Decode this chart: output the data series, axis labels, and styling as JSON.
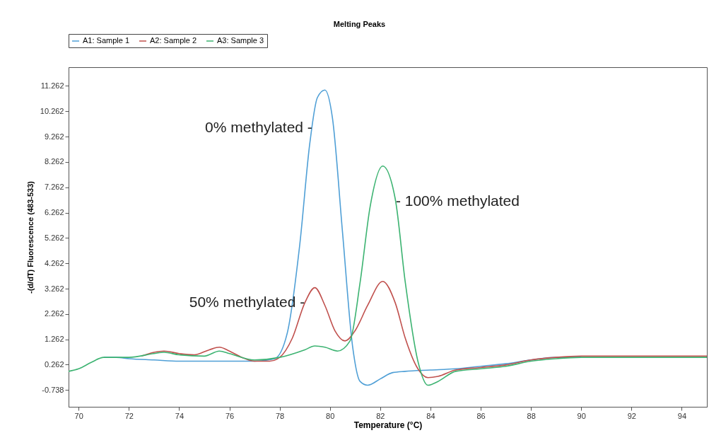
{
  "chart_data": {
    "type": "line",
    "title": "Melting Peaks",
    "xlabel": "Temperature (°C)",
    "ylabel": "-(d/dT) Fluorescence (483-533)",
    "xlim": [
      69.6,
      95.0
    ],
    "ylim": [
      -1.4,
      12.0
    ],
    "xticks": [
      70,
      72,
      74,
      76,
      78,
      80,
      82,
      84,
      86,
      88,
      90,
      92,
      94
    ],
    "yticks": [
      -0.738,
      0.262,
      1.262,
      2.262,
      3.262,
      4.262,
      5.262,
      6.262,
      7.262,
      8.262,
      9.262,
      10.262,
      11.262
    ],
    "grid": false,
    "legend": "top",
    "marker": "none",
    "line_style": "solid",
    "series": [
      {
        "name": "A1: Sample 1",
        "color": "#4f9fd6",
        "x": [
          71.0,
          71.5,
          72,
          73,
          74,
          75,
          76,
          77,
          77.8,
          78.3,
          78.8,
          79.2,
          79.5,
          79.8,
          80.1,
          80.5,
          80.9,
          81.2,
          81.5,
          82,
          82.5,
          83,
          84,
          85,
          86,
          87,
          88,
          89,
          90
        ],
        "values": [
          0.55,
          0.55,
          0.5,
          0.45,
          0.4,
          0.4,
          0.4,
          0.4,
          0.5,
          1.5,
          5.0,
          9.0,
          10.8,
          11.1,
          10.0,
          5.5,
          1.0,
          -0.4,
          -0.55,
          -0.3,
          -0.05,
          0.0,
          0.05,
          0.1,
          0.2,
          0.3,
          0.45,
          0.55,
          0.55
        ]
      },
      {
        "name": "A2: Sample 2",
        "color": "#c0504d",
        "x": [
          72.5,
          73,
          73.4,
          74,
          74.6,
          75.2,
          75.6,
          76,
          76.5,
          77,
          77.6,
          78,
          78.5,
          79,
          79.4,
          79.8,
          80.2,
          80.6,
          81,
          81.5,
          82.1,
          82.6,
          83,
          83.5,
          83.9,
          84.3,
          85,
          86,
          87,
          88,
          89,
          90,
          92,
          95
        ],
        "values": [
          0.6,
          0.75,
          0.8,
          0.7,
          0.65,
          0.85,
          0.95,
          0.8,
          0.55,
          0.4,
          0.4,
          0.55,
          1.3,
          2.7,
          3.3,
          2.6,
          1.6,
          1.2,
          1.6,
          2.6,
          3.55,
          2.7,
          1.3,
          0.1,
          -0.25,
          -0.2,
          0.05,
          0.15,
          0.25,
          0.45,
          0.55,
          0.6,
          0.6,
          0.6
        ]
      },
      {
        "name": "A3: Sample 3",
        "color": "#3cb371",
        "x": [
          69.6,
          70,
          70.5,
          71,
          71.5,
          72,
          73,
          73.4,
          74,
          75,
          75.6,
          76,
          77,
          78,
          79,
          79.4,
          79.8,
          80.3,
          80.8,
          81.2,
          81.6,
          82.1,
          82.6,
          83,
          83.5,
          83.9,
          84.3,
          85,
          86,
          87,
          88,
          89,
          90,
          92,
          95
        ],
        "values": [
          0.0,
          0.1,
          0.35,
          0.55,
          0.55,
          0.55,
          0.7,
          0.75,
          0.65,
          0.6,
          0.8,
          0.7,
          0.45,
          0.55,
          0.85,
          1.0,
          0.95,
          0.8,
          1.2,
          3.5,
          6.5,
          8.1,
          6.8,
          3.5,
          0.4,
          -0.55,
          -0.4,
          0.0,
          0.1,
          0.2,
          0.4,
          0.5,
          0.55,
          0.55,
          0.55
        ]
      }
    ],
    "annotations": [
      {
        "text": "0% methylated -",
        "x": 79.3,
        "y": 9.6
      },
      {
        "text": "50% methylated -",
        "x": 79.0,
        "y": 2.7
      },
      {
        "text": "- 100% methylated",
        "x": 82.62,
        "y": 6.7
      }
    ]
  }
}
